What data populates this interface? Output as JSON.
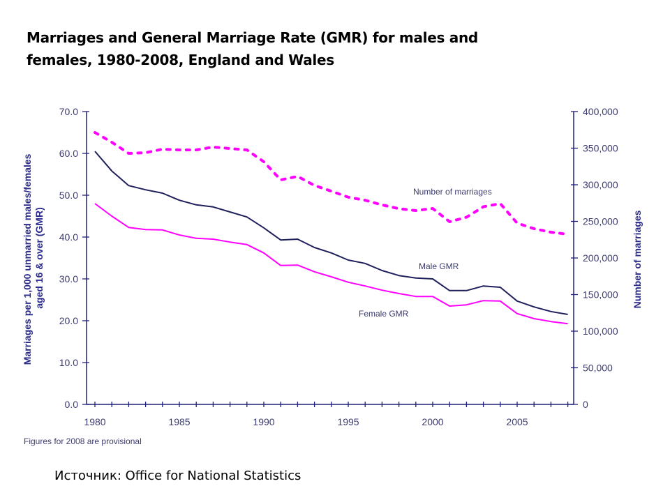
{
  "slide": {
    "title": "Marriages and General Marriage Rate (GMR) for males and females, 1980-2008, England and Wales",
    "source": "Источник: Office for National Statistics"
  },
  "colors": {
    "axis": "#1f1f7a",
    "male": "#1f1f5c",
    "female": "#ff00ff",
    "marriages": "#ff00ff"
  },
  "chart_data": {
    "type": "line",
    "title": "Marriages and General Marriage Rate (GMR) for males and females, 1980-2008, England and Wales",
    "xlabel": "",
    "ylabel": "Marriages per 1,000 unmarried males/females aged 16 & over (GMR)",
    "y2label": "Number of marriages",
    "note": "Figures for 2008 are provisional",
    "x": [
      1980,
      1981,
      1982,
      1983,
      1984,
      1985,
      1986,
      1987,
      1988,
      1989,
      1990,
      1991,
      1992,
      1993,
      1994,
      1995,
      1996,
      1997,
      1998,
      1999,
      2000,
      2001,
      2002,
      2003,
      2004,
      2005,
      2006,
      2007,
      2008
    ],
    "xticks": [
      "1980",
      "1985",
      "1990",
      "1995",
      "2000",
      "2005"
    ],
    "xlim": [
      1980,
      2008
    ],
    "ylim": [
      0,
      70
    ],
    "yticks": [
      "0.0",
      "10.0",
      "20.0",
      "30.0",
      "40.0",
      "50.0",
      "60.0",
      "70.0"
    ],
    "y2lim": [
      0,
      400000
    ],
    "y2ticks": [
      "0",
      "50,000",
      "100,000",
      "150,000",
      "200,000",
      "250,000",
      "300,000",
      "350,000",
      "400,000"
    ],
    "grid": false,
    "series": [
      {
        "name": "Male GMR",
        "axis": "left",
        "style": "solid",
        "values": [
          60.5,
          55.8,
          52.3,
          51.3,
          50.5,
          48.8,
          47.7,
          47.2,
          46.0,
          44.8,
          42.2,
          39.3,
          39.5,
          37.5,
          36.2,
          34.5,
          33.7,
          32.0,
          30.8,
          30.2,
          30.0,
          27.2,
          27.2,
          28.3,
          28.0,
          24.7,
          23.3,
          22.2,
          21.5
        ]
      },
      {
        "name": "Female GMR",
        "axis": "left",
        "style": "solid",
        "values": [
          48.0,
          45.0,
          42.3,
          41.8,
          41.7,
          40.5,
          39.7,
          39.5,
          38.8,
          38.2,
          36.2,
          33.2,
          33.3,
          31.7,
          30.5,
          29.2,
          28.3,
          27.3,
          26.5,
          25.8,
          25.8,
          23.5,
          23.8,
          24.8,
          24.7,
          21.7,
          20.5,
          19.8,
          19.3
        ]
      },
      {
        "name": "Number of marriages",
        "axis": "right",
        "style": "dotted",
        "values": [
          371400,
          358100,
          342900,
          343800,
          348600,
          347600,
          347600,
          351400,
          349500,
          347600,
          331400,
          306700,
          311400,
          299000,
          291200,
          283000,
          278900,
          272500,
          267300,
          264800,
          267600,
          249500,
          255600,
          270000,
          274300,
          247600,
          240000,
          235200,
          232400
        ]
      }
    ]
  }
}
